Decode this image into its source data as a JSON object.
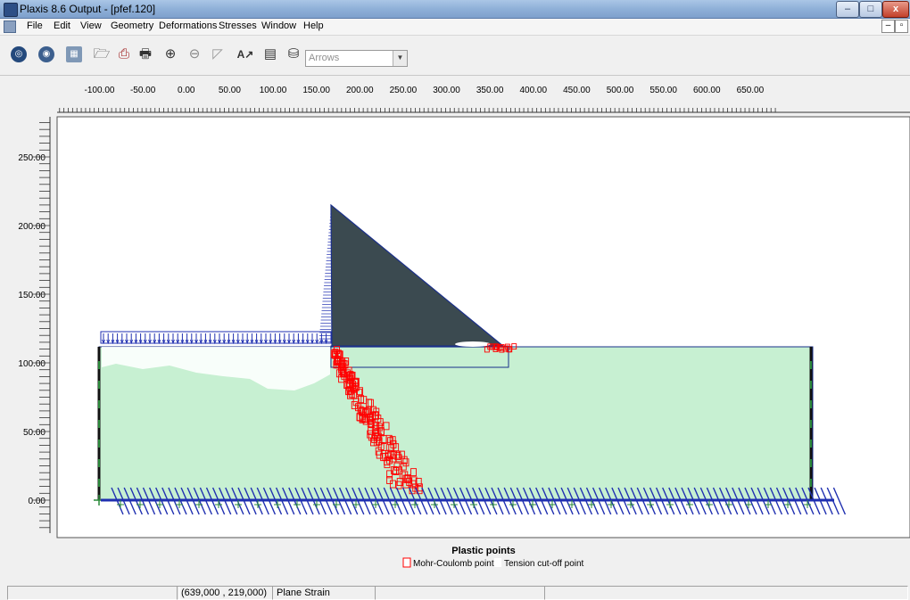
{
  "window": {
    "title": "Plaxis 8.6 Output - [pfef.120]"
  },
  "menu": [
    "File",
    "Edit",
    "View",
    "Geometry",
    "Deformations",
    "Stresses",
    "Window",
    "Help"
  ],
  "toolbar": {
    "display_select": "Arrows"
  },
  "axes": {
    "x_ticks": [
      "-100.00",
      "-50.00",
      "0.00",
      "50.00",
      "100.00",
      "150.00",
      "200.00",
      "250.00",
      "300.00",
      "350.00",
      "400.00",
      "450.00",
      "500.00",
      "550.00",
      "600.00",
      "650.00"
    ],
    "y_ticks": [
      "250.00",
      "200.00",
      "150.00",
      "100.00",
      "50.00",
      "0.00"
    ]
  },
  "legend": {
    "title": "Plastic points",
    "items": [
      {
        "label": "Mohr-Coulomb point",
        "color": "#ff0000"
      },
      {
        "label": "Tension cut-off point",
        "color": "#ffffff"
      }
    ]
  },
  "status": {
    "coords": "(639,000 , 219,000)",
    "mode": "Plane Strain"
  },
  "colors": {
    "soil": "#c7f0d2",
    "dam": "#3b4a50",
    "outline": "#1a2f8a",
    "load": "#1f2fb0",
    "plastic": "#ff0000"
  }
}
